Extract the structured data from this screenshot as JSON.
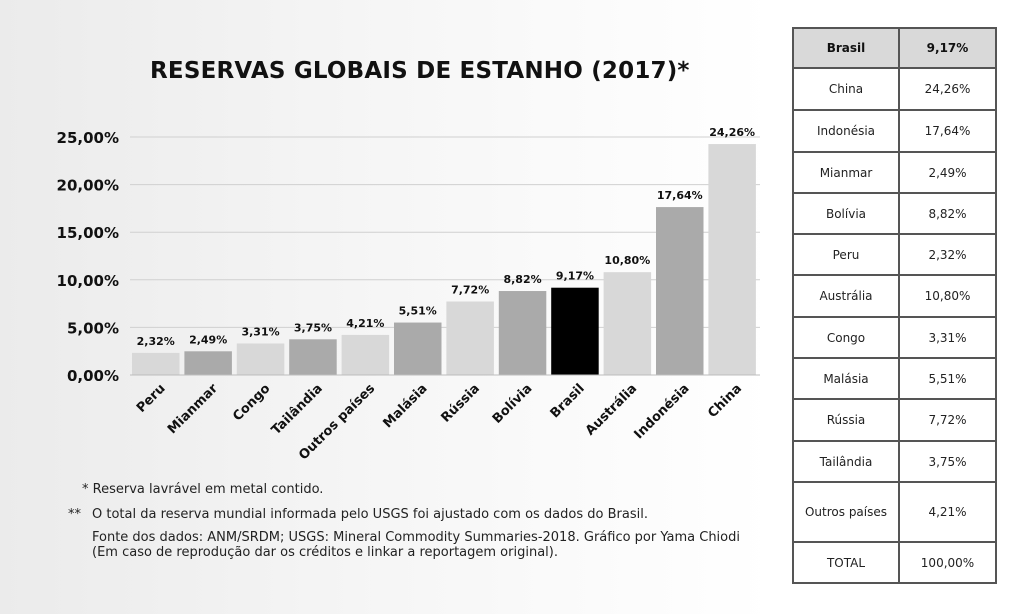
{
  "chart_data": {
    "type": "bar",
    "title": "RESERVAS GLOBAIS DE ESTANHO (2017)*",
    "categories": [
      "Peru",
      "Mianmar",
      "Congo",
      "Tailândia",
      "Outros países",
      "Malásia",
      "Rússia",
      "Bolívia",
      "Brasil",
      "Austrália",
      "Indonésia",
      "China"
    ],
    "values": [
      2.32,
      2.49,
      3.31,
      3.75,
      4.21,
      5.51,
      7.72,
      8.82,
      9.17,
      10.8,
      17.64,
      24.26
    ],
    "value_labels": [
      "2,32%",
      "2,49%",
      "3,31%",
      "3,75%",
      "4,21%",
      "5,51%",
      "7,72%",
      "8,82%",
      "9,17%",
      "10,80%",
      "17,64%",
      "24,26%"
    ],
    "bar_colors": [
      "#d8d8d8",
      "#aaaaaa",
      "#d8d8d8",
      "#aaaaaa",
      "#d8d8d8",
      "#aaaaaa",
      "#d8d8d8",
      "#aaaaaa",
      "#000000",
      "#d8d8d8",
      "#aaaaaa",
      "#d8d8d8"
    ],
    "y_ticks": [
      0,
      5,
      10,
      15,
      20,
      25
    ],
    "y_tick_labels": [
      "0,00%",
      "5,00%",
      "10,00%",
      "15,00%",
      "20,00%",
      "25,00%"
    ],
    "ylim": [
      0,
      25
    ],
    "grid": true,
    "xlabel": "",
    "ylabel": ""
  },
  "notes": {
    "note1": "* Reserva lavrável em metal contido.",
    "note2_mark": "**",
    "note2": "O total da reserva mundial informada pelo USGS foi ajustado com os dados do Brasil.",
    "source": "Fonte dos dados: ANM/SRDM; USGS: Mineral Commodity Summaries-2018. Gráfico por Yama Chiodi (Em caso de reprodução dar os créditos e linkar a reportagem original)."
  },
  "table": {
    "header": [
      "Brasil",
      "9,17%"
    ],
    "rows": [
      [
        "China",
        "24,26%"
      ],
      [
        "Indonésia",
        "17,64%"
      ],
      [
        "Mianmar",
        "2,49%"
      ],
      [
        "Bolívia",
        "8,82%"
      ],
      [
        "Peru",
        "2,32%"
      ],
      [
        "Austrália",
        "10,80%"
      ],
      [
        "Congo",
        "3,31%"
      ],
      [
        "Malásia",
        "5,51%"
      ],
      [
        "Rússia",
        "7,72%"
      ],
      [
        "Tailândia",
        "3,75%"
      ],
      [
        "Outros países",
        "4,21%"
      ],
      [
        "TOTAL",
        "100,00%"
      ]
    ]
  }
}
